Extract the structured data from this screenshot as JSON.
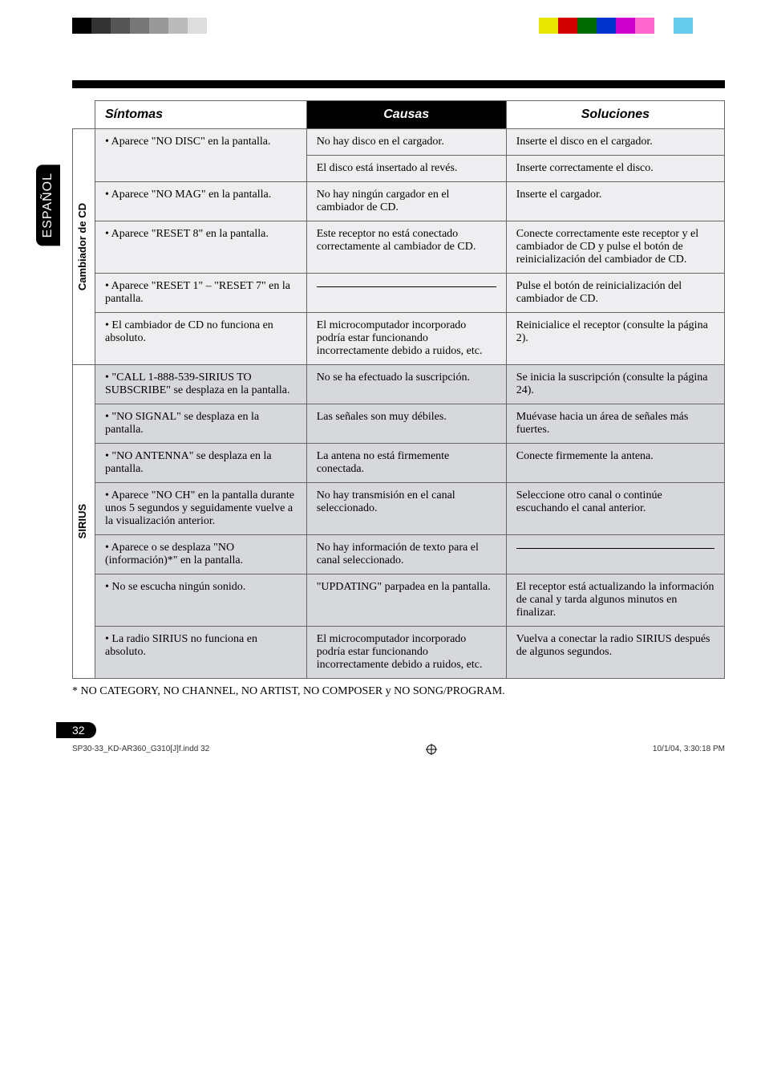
{
  "colors": {
    "band_a": "#eeeef0",
    "band_b": "#d6d8dc",
    "header_dark": "#000000",
    "border": "#666666"
  },
  "top_color_bar_left": [
    "#000000",
    "#333333",
    "#555555",
    "#777777",
    "#999999",
    "#bbbbbb",
    "#dddddd",
    "#ffffff"
  ],
  "top_color_bar_right": [
    "#e6e600",
    "#d40000",
    "#006b00",
    "#0033cc",
    "#cc00cc",
    "#ff66cc",
    "#ffffff",
    "#66ccee"
  ],
  "lang_tab": "ESPAÑOL",
  "headers": {
    "sintomas": "Síntomas",
    "causas": "Causas",
    "soluciones": "Soluciones"
  },
  "section1": {
    "label": "Cambiador de CD",
    "rows": [
      {
        "s": "• Aparece \"NO DISC\" en la pantalla.",
        "c": "No hay disco en el cargador.",
        "sol": "Inserte el disco en el cargador."
      },
      {
        "s": "",
        "c": "El disco está insertado al revés.",
        "sol": "Inserte correctamente el disco."
      },
      {
        "s": "• Aparece \"NO MAG\" en la pantalla.",
        "c": "No hay ningún cargador en el cambiador de CD.",
        "sol": "Inserte el cargador."
      },
      {
        "s": "• Aparece \"RESET 8\" en la pantalla.",
        "c": "Este receptor no está conectado correctamente al cambiador de CD.",
        "sol": "Conecte correctamente este receptor y el cambiador de CD y pulse el botón de reinicialización del cambiador de CD."
      },
      {
        "s": "• Aparece \"RESET 1\" – \"RESET 7\" en la pantalla.",
        "c": "—",
        "sol": "Pulse el botón de reinicialización del cambiador de CD."
      },
      {
        "s": "• El cambiador de CD no funciona en absoluto.",
        "c": "El microcomputador incorporado podría estar funcionando incorrectamente debido a ruidos, etc.",
        "sol": "Reinicialice el receptor (consulte la página 2)."
      }
    ]
  },
  "section2": {
    "label": "SIRIUS",
    "rows": [
      {
        "s": "• \"CALL 1-888-539-SIRIUS TO SUBSCRIBE\" se desplaza en la pantalla.",
        "c": "No se ha efectuado la suscripción.",
        "sol": "Se inicia la suscripción (consulte la página 24)."
      },
      {
        "s": "• \"NO SIGNAL\" se desplaza en la pantalla.",
        "c": "Las señales son muy débiles.",
        "sol": "Muévase hacia un área de señales más fuertes."
      },
      {
        "s": "• \"NO ANTENNA\" se desplaza en la pantalla.",
        "c": "La antena no está firmemente conectada.",
        "sol": "Conecte firmemente la antena."
      },
      {
        "s": "• Aparece \"NO CH\" en la pantalla durante unos 5 segundos y seguidamente vuelve a la visualización anterior.",
        "c": "No hay transmisión en el canal seleccionado.",
        "sol": "Seleccione otro canal o continúe escuchando el canal anterior."
      },
      {
        "s": "• Aparece o se desplaza \"NO (información)*\" en la pantalla.",
        "c": "No hay información de texto para el canal seleccionado.",
        "sol": "—"
      },
      {
        "s": "• No se escucha ningún sonido.",
        "c": "\"UPDATING\" parpadea en la pantalla.",
        "sol": "El receptor está actualizando la información de canal y tarda algunos minutos en finalizar."
      },
      {
        "s": "• La radio SIRIUS no funciona en absoluto.",
        "c": "El microcomputador incorporado podría estar funcionando incorrectamente debido a ruidos, etc.",
        "sol": "Vuelva a conectar la radio SIRIUS después de algunos segundos."
      }
    ]
  },
  "footnote": "* NO CATEGORY, NO CHANNEL, NO ARTIST, NO COMPOSER y NO SONG/PROGRAM.",
  "page_number": "32",
  "footer_left": "SP30-33_KD-AR360_G310[J]f.indd   32",
  "footer_right": "10/1/04, 3:30:18 PM"
}
